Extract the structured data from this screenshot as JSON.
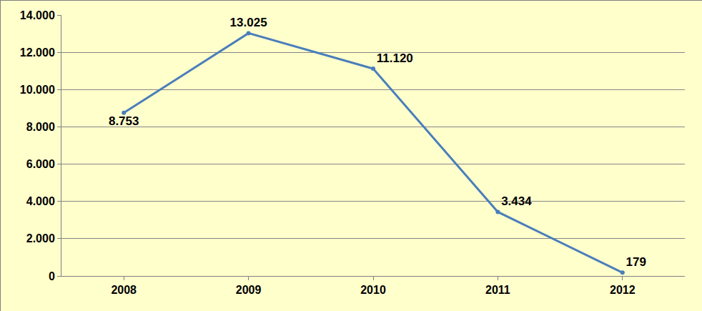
{
  "chart_data": {
    "type": "line",
    "categories": [
      "2008",
      "2009",
      "2010",
      "2011",
      "2012"
    ],
    "values": [
      8753,
      13025,
      11120,
      3434,
      179
    ],
    "value_labels": [
      "8.753",
      "13.025",
      "11.120",
      "3.434",
      "179"
    ],
    "color": "#4a7ebb",
    "marker": "circle",
    "ylim": [
      0,
      14000
    ],
    "yticks": [
      0,
      {
        "value": 2000,
        "label": "2.000"
      },
      {
        "value": 4000,
        "label": "4.000"
      },
      {
        "value": 6000,
        "label": "6.000"
      },
      {
        "value": 8000,
        "label": "8.000"
      },
      {
        "value": 10000,
        "label": "10.000"
      },
      {
        "value": 12000,
        "label": "12.000"
      },
      {
        "value": 14000,
        "label": "14.000"
      }
    ],
    "grid": true,
    "data_labels": true
  }
}
